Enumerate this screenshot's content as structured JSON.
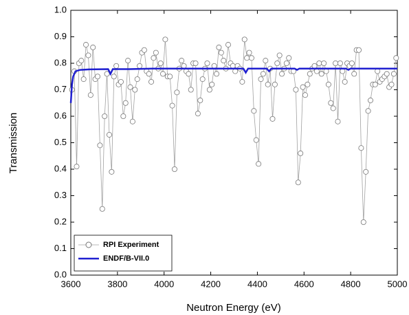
{
  "chart_data": {
    "type": "line",
    "x_label": "Neutron Energy (eV)",
    "y_label": "Transmission",
    "xlim": [
      3600,
      5000
    ],
    "xticks": [
      3600,
      3800,
      4000,
      4200,
      4400,
      4600,
      4800,
      5000
    ],
    "ylim": [
      0,
      1
    ],
    "yticks": [
      {
        "value": 0,
        "label": "0.0"
      },
      0.1,
      0.2,
      0.3,
      0.4,
      0.5,
      0.6,
      0.7,
      0.8,
      0.9,
      {
        "value": 1,
        "label": "1.0"
      }
    ],
    "grid": false,
    "legend": "lower left",
    "series": [
      {
        "name": "RPI Experiment",
        "color": "#a0a0a0",
        "marker": "circle",
        "x": [
          3605,
          3615,
          3625,
          3635,
          3645,
          3655,
          3665,
          3675,
          3685,
          3695,
          3705,
          3715,
          3725,
          3735,
          3745,
          3755,
          3765,
          3775,
          3785,
          3795,
          3805,
          3815,
          3825,
          3835,
          3845,
          3855,
          3865,
          3875,
          3885,
          3895,
          3905,
          3915,
          3925,
          3935,
          3945,
          3955,
          3965,
          3975,
          3985,
          3995,
          4005,
          4015,
          4025,
          4035,
          4045,
          4055,
          4065,
          4075,
          4085,
          4095,
          4105,
          4115,
          4125,
          4135,
          4145,
          4155,
          4165,
          4175,
          4185,
          4195,
          4205,
          4215,
          4225,
          4235,
          4245,
          4255,
          4265,
          4275,
          4285,
          4295,
          4305,
          4315,
          4325,
          4335,
          4345,
          4355,
          4365,
          4375,
          4385,
          4395,
          4405,
          4415,
          4425,
          4435,
          4445,
          4455,
          4465,
          4475,
          4485,
          4495,
          4505,
          4515,
          4525,
          4535,
          4545,
          4555,
          4565,
          4575,
          4585,
          4595,
          4605,
          4615,
          4625,
          4635,
          4645,
          4655,
          4665,
          4675,
          4685,
          4695,
          4705,
          4715,
          4725,
          4735,
          4745,
          4755,
          4765,
          4775,
          4785,
          4795,
          4805,
          4815,
          4825,
          4835,
          4845,
          4855,
          4865,
          4875,
          4885,
          4895,
          4905,
          4915,
          4925,
          4935,
          4945,
          4955,
          4965,
          4975,
          4985,
          4995
        ],
        "values": [
          0.7,
          0.77,
          0.41,
          0.8,
          0.81,
          0.74,
          0.87,
          0.83,
          0.68,
          0.86,
          0.74,
          0.75,
          0.49,
          0.25,
          0.6,
          0.76,
          0.53,
          0.39,
          0.75,
          0.79,
          0.72,
          0.73,
          0.6,
          0.65,
          0.81,
          0.71,
          0.58,
          0.7,
          0.74,
          0.79,
          0.84,
          0.85,
          0.77,
          0.76,
          0.73,
          0.82,
          0.84,
          0.78,
          0.8,
          0.76,
          0.89,
          0.75,
          0.75,
          0.64,
          0.4,
          0.69,
          0.78,
          0.81,
          0.79,
          0.77,
          0.76,
          0.7,
          0.8,
          0.8,
          0.61,
          0.66,
          0.74,
          0.78,
          0.8,
          0.7,
          0.72,
          0.79,
          0.76,
          0.86,
          0.84,
          0.81,
          0.78,
          0.87,
          0.8,
          0.79,
          0.77,
          0.79,
          0.78,
          0.73,
          0.89,
          0.82,
          0.84,
          0.82,
          0.62,
          0.51,
          0.42,
          0.74,
          0.76,
          0.81,
          0.72,
          0.78,
          0.59,
          0.72,
          0.8,
          0.83,
          0.76,
          0.78,
          0.8,
          0.82,
          0.77,
          0.77,
          0.7,
          0.35,
          0.46,
          0.71,
          0.68,
          0.72,
          0.76,
          0.78,
          0.79,
          0.77,
          0.8,
          0.76,
          0.8,
          0.77,
          0.72,
          0.65,
          0.63,
          0.8,
          0.58,
          0.8,
          0.77,
          0.73,
          0.8,
          0.79,
          0.8,
          0.76,
          0.85,
          0.85,
          0.48,
          0.2,
          0.39,
          0.62,
          0.66,
          0.72,
          0.72,
          0.77,
          0.73,
          0.74,
          0.75,
          0.76,
          0.71,
          0.72,
          0.76,
          0.82
        ]
      },
      {
        "name": "ENDF/B-VII.0",
        "color": "#1f1fd0",
        "marker": "none",
        "x": [
          3600,
          3605,
          3610,
          3620,
          3640,
          3680,
          3760,
          3770,
          3780,
          3850,
          3950,
          4050,
          4150,
          4250,
          4340,
          4350,
          4360,
          4440,
          4450,
          4460,
          4560,
          4570,
          4580,
          4700,
          4780,
          4790,
          4800,
          4900,
          5000
        ],
        "values": [
          0.65,
          0.72,
          0.75,
          0.77,
          0.775,
          0.777,
          0.778,
          0.76,
          0.778,
          0.778,
          0.78,
          0.78,
          0.78,
          0.78,
          0.78,
          0.765,
          0.78,
          0.78,
          0.77,
          0.78,
          0.78,
          0.775,
          0.78,
          0.78,
          0.78,
          0.775,
          0.78,
          0.78,
          0.78
        ]
      }
    ]
  }
}
